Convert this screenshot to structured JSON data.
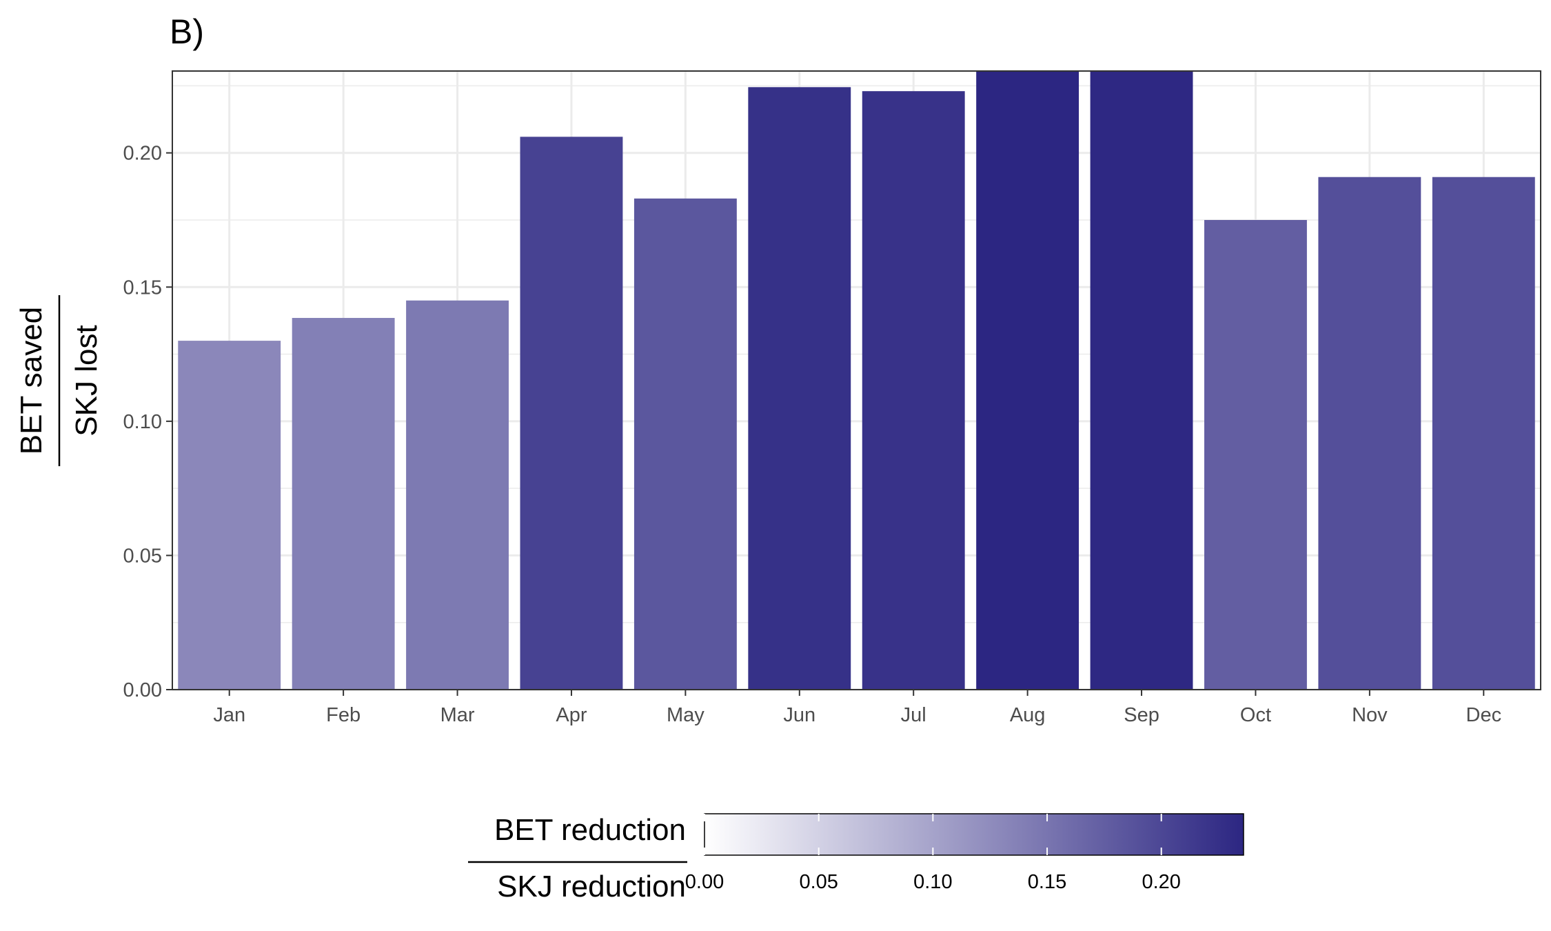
{
  "chart_data": {
    "type": "bar",
    "panel_label": "B)",
    "categories": [
      "Jan",
      "Feb",
      "Mar",
      "Apr",
      "May",
      "Jun",
      "Jul",
      "Aug",
      "Sep",
      "Oct",
      "Nov",
      "Dec"
    ],
    "values": [
      0.13,
      0.1385,
      0.145,
      0.206,
      0.183,
      0.2245,
      0.223,
      0.236,
      0.234,
      0.175,
      0.191,
      0.191
    ],
    "ylabel": {
      "numerator": "BET saved",
      "denominator": "SKJ lost"
    },
    "ylim": [
      0,
      0.2305
    ],
    "yticks": [
      0.0,
      0.05,
      0.1,
      0.15,
      0.2
    ],
    "ytick_labels": [
      "0.00",
      "0.05",
      "0.10",
      "0.15",
      "0.20"
    ],
    "grid": true,
    "fill_scale": {
      "low_color": "#ffffff",
      "high_color": "#2c2682",
      "range": [
        0,
        0.236
      ]
    },
    "legend": {
      "placement": "bottom",
      "title": {
        "numerator": "BET reduction",
        "denominator": "SKJ reduction"
      },
      "ticks": [
        0.0,
        0.05,
        0.1,
        0.15,
        0.2
      ],
      "tick_labels": [
        "0.00",
        "0.05",
        "0.10",
        "0.15",
        "0.20"
      ]
    }
  }
}
